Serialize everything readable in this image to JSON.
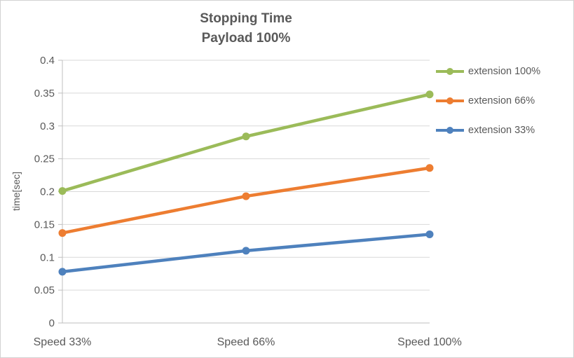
{
  "chart": {
    "title_line1": "Stopping Time",
    "title_line2": "Payload 100%",
    "y_axis_title": "time[sec]"
  },
  "chart_data": {
    "type": "line",
    "title": "Stopping Time Payload 100%",
    "xlabel": "",
    "ylabel": "time[sec]",
    "categories": [
      "Speed 33%",
      "Speed 66%",
      "Speed 100%"
    ],
    "series": [
      {
        "name": "extension 100%",
        "color": "#9bbb59",
        "values": [
          0.201,
          0.284,
          0.348
        ]
      },
      {
        "name": "extension 66%",
        "color": "#ed7d31",
        "values": [
          0.137,
          0.193,
          0.236
        ]
      },
      {
        "name": "extension 33%",
        "color": "#4e81bd",
        "values": [
          0.078,
          0.11,
          0.135
        ]
      }
    ],
    "ylim": [
      0,
      0.4
    ],
    "ytick_step": 0.05,
    "ytick_labels": [
      "0",
      "0.05",
      "0.1",
      "0.15",
      "0.2",
      "0.25",
      "0.3",
      "0.35",
      "0.4"
    ],
    "grid": true,
    "legend_position": "right",
    "marker": "circle"
  },
  "style": {
    "grid_color": "#d9d9d9",
    "axis_color": "#bfbfbf",
    "text_color": "#595959"
  }
}
